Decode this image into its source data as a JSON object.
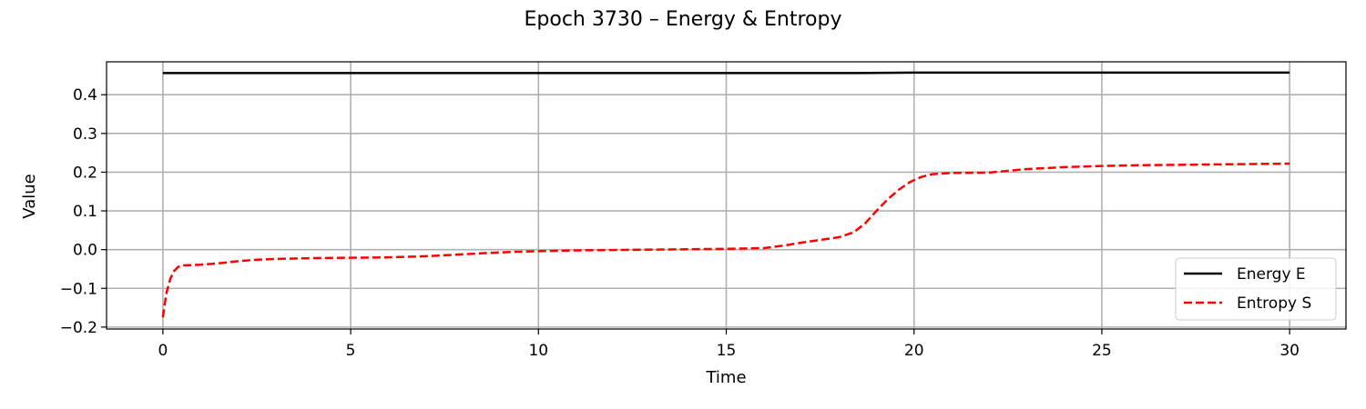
{
  "chart_data": {
    "type": "line",
    "title": "Epoch 3730 – Energy & Entropy",
    "xlabel": "Time",
    "ylabel": "Value",
    "xlim": [
      -1.5,
      31.5
    ],
    "ylim": [
      -0.205,
      0.485
    ],
    "xticks": [
      0,
      5,
      10,
      15,
      20,
      25,
      30
    ],
    "xtick_labels": [
      "0",
      "5",
      "10",
      "15",
      "20",
      "25",
      "30"
    ],
    "yticks": [
      -0.2,
      -0.1,
      0.0,
      0.1,
      0.2,
      0.3,
      0.4
    ],
    "ytick_labels": [
      "−0.2",
      "−0.1",
      "0.0",
      "0.1",
      "0.2",
      "0.3",
      "0.4"
    ],
    "grid": true,
    "legend_position": "lower-right",
    "series": [
      {
        "name": "Energy E",
        "color": "#000000",
        "style": "solid",
        "x": [
          0,
          5,
          10,
          15,
          18.5,
          20,
          25,
          30
        ],
        "y": [
          0.456,
          0.456,
          0.456,
          0.456,
          0.456,
          0.457,
          0.457,
          0.457
        ]
      },
      {
        "name": "Entropy S",
        "color": "#ff0000",
        "style": "dashed",
        "x": [
          0,
          0.05,
          0.1,
          0.2,
          0.3,
          0.4,
          0.5,
          0.7,
          1.0,
          1.5,
          2.0,
          2.5,
          3.0,
          4.0,
          5.0,
          6.0,
          7.0,
          8.0,
          9.0,
          10.0,
          11.0,
          12.0,
          13.0,
          14.0,
          15.0,
          16.0,
          16.5,
          17.0,
          17.5,
          18.0,
          18.4,
          18.7,
          19.0,
          19.3,
          19.6,
          19.9,
          20.2,
          20.5,
          21.0,
          22.0,
          23.0,
          24.0,
          25.0,
          26.0,
          27.0,
          28.0,
          29.0,
          30.0
        ],
        "y": [
          -0.175,
          -0.14,
          -0.11,
          -0.075,
          -0.055,
          -0.045,
          -0.041,
          -0.04,
          -0.039,
          -0.035,
          -0.03,
          -0.026,
          -0.024,
          -0.022,
          -0.021,
          -0.02,
          -0.017,
          -0.012,
          -0.007,
          -0.004,
          -0.002,
          -0.001,
          0.0,
          0.001,
          0.002,
          0.004,
          0.01,
          0.018,
          0.025,
          0.032,
          0.045,
          0.068,
          0.1,
          0.13,
          0.155,
          0.175,
          0.188,
          0.195,
          0.198,
          0.199,
          0.208,
          0.213,
          0.216,
          0.218,
          0.219,
          0.22,
          0.221,
          0.222
        ]
      }
    ]
  }
}
